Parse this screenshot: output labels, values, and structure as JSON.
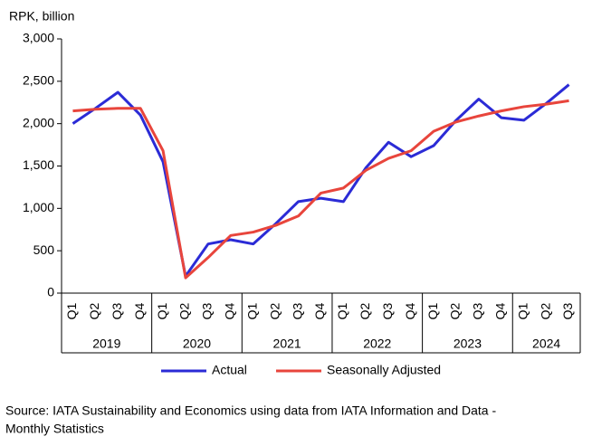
{
  "chart_data": {
    "type": "line",
    "y_label": "RPK, billion",
    "categories": [
      "Q1",
      "Q2",
      "Q3",
      "Q4",
      "Q1",
      "Q2",
      "Q3",
      "Q4",
      "Q1",
      "Q2",
      "Q3",
      "Q4",
      "Q1",
      "Q2",
      "Q3",
      "Q4",
      "Q1",
      "Q2",
      "Q3",
      "Q4",
      "Q1",
      "Q2",
      "Q3"
    ],
    "groups": [
      "2019",
      "2020",
      "2021",
      "2022",
      "2023",
      "2024"
    ],
    "series": [
      {
        "name": "Actual",
        "color": "#2b2bd6",
        "values": [
          2000,
          2180,
          2370,
          2100,
          1550,
          200,
          580,
          630,
          580,
          820,
          1080,
          1120,
          1080,
          1480,
          1780,
          1610,
          1740,
          2040,
          2290,
          2070,
          2040,
          2240,
          2460
        ]
      },
      {
        "name": "Seasonally Adjusted",
        "color": "#e8453c",
        "values": [
          2150,
          2170,
          2180,
          2180,
          1680,
          180,
          420,
          680,
          720,
          800,
          910,
          1180,
          1240,
          1450,
          1590,
          1680,
          1910,
          2020,
          2090,
          2150,
          2200,
          2230,
          2270
        ]
      }
    ],
    "ylim": [
      0,
      3000
    ],
    "yticks": [
      0,
      500,
      {
        "value": 1000,
        "label": "1,000"
      },
      {
        "value": 1500,
        "label": "1,500"
      },
      {
        "value": 2000,
        "label": "2,000"
      },
      {
        "value": 2500,
        "label": "2,500"
      },
      {
        "value": 3000,
        "label": "3,000"
      }
    ],
    "grid": false,
    "legend": "bottom",
    "source": [
      "Source: IATA Sustainability and Economics using data from IATA Information and Data -",
      "Monthly Statistics"
    ]
  }
}
